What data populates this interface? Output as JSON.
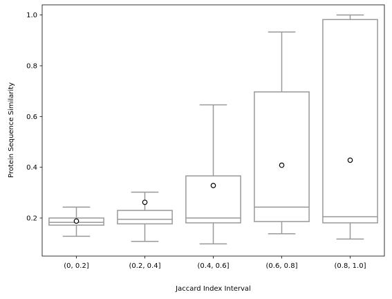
{
  "chart_data": {
    "type": "box",
    "title": "",
    "xlabel": "Jaccard Index Interval",
    "ylabel": "Protein Sequence Similarity",
    "categories": [
      "(0, 0.2]",
      "(0.2, 0.4]",
      "(0.4, 0.6]",
      "(0.6, 0.8]",
      "(0.8, 1.0]"
    ],
    "ylim": [
      0.05,
      1.04
    ],
    "yticks": [
      0.2,
      0.4,
      0.6,
      0.8,
      1.0
    ],
    "ytick_labels": [
      "0.2",
      "0.4",
      "0.6",
      "0.8",
      "1.0"
    ],
    "grid": false,
    "boxes": [
      {
        "whislo": 0.128,
        "q1": 0.172,
        "med": 0.183,
        "q3": 0.2,
        "whishi": 0.243,
        "mean": 0.188
      },
      {
        "whislo": 0.108,
        "q1": 0.177,
        "med": 0.195,
        "q3": 0.23,
        "whishi": 0.302,
        "mean": 0.262
      },
      {
        "whislo": 0.098,
        "q1": 0.181,
        "med": 0.2,
        "q3": 0.366,
        "whishi": 0.646,
        "mean": 0.328
      },
      {
        "whislo": 0.138,
        "q1": 0.186,
        "med": 0.243,
        "q3": 0.697,
        "whishi": 0.933,
        "mean": 0.408
      },
      {
        "whislo": 0.117,
        "q1": 0.181,
        "med": 0.205,
        "q3": 0.982,
        "whishi": 1.0,
        "mean": 0.428
      }
    ],
    "colors": {
      "box": "#999999",
      "mean_marker": "#000000",
      "axis": "#000000"
    }
  }
}
